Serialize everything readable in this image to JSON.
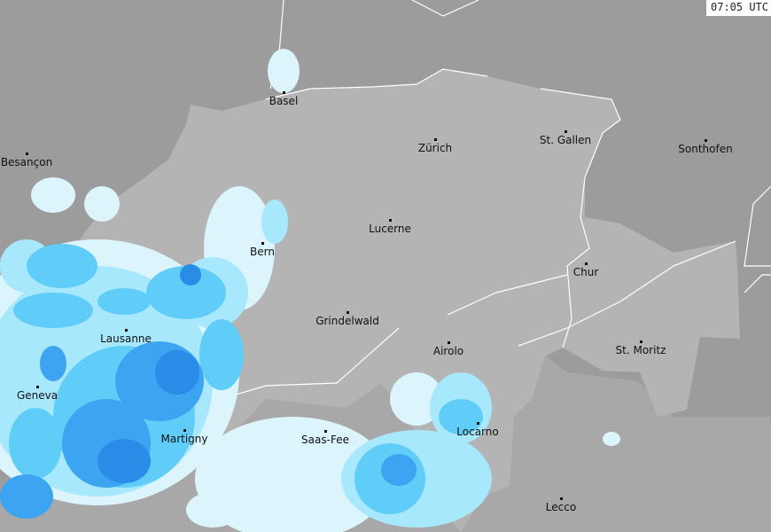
{
  "timestamp": "07:05 UTC",
  "colors": {
    "outside": "#9c9c9c",
    "switzerland": "#b4b4b4",
    "italy": "#a8a8a8",
    "border": "#ffffff",
    "rain_levels": [
      "#dcf4fc",
      "#a8e8fc",
      "#60ccf8",
      "#3ca4f0",
      "#2a8ce6"
    ]
  },
  "cities": [
    {
      "name": "Basel",
      "dot": [
        320,
        104
      ]
    },
    {
      "name": "Besançon",
      "dot": [
        30,
        173
      ]
    },
    {
      "name": "Zürich",
      "dot": [
        491,
        157
      ]
    },
    {
      "name": "St. Gallen",
      "dot": [
        638,
        148
      ]
    },
    {
      "name": "Sonthofen",
      "dot": [
        796,
        158
      ]
    },
    {
      "name": "Lucerne",
      "dot": [
        440,
        248
      ]
    },
    {
      "name": "Bern",
      "dot": [
        296,
        274
      ]
    },
    {
      "name": "Chur",
      "dot": [
        661,
        297
      ]
    },
    {
      "name": "Grindelwald",
      "dot": [
        392,
        352
      ]
    },
    {
      "name": "Lausanne",
      "dot": [
        142,
        372
      ]
    },
    {
      "name": "Airolo",
      "dot": [
        506,
        386
      ]
    },
    {
      "name": "St. Moritz",
      "dot": [
        723,
        385
      ]
    },
    {
      "name": "Geneva",
      "dot": [
        42,
        436
      ]
    },
    {
      "name": "Locarno",
      "dot": [
        539,
        477
      ]
    },
    {
      "name": "Martigny",
      "dot": [
        208,
        485
      ]
    },
    {
      "name": "Saas-Fee",
      "dot": [
        367,
        486
      ]
    },
    {
      "name": "Lecco",
      "dot": [
        633,
        562
      ]
    }
  ]
}
